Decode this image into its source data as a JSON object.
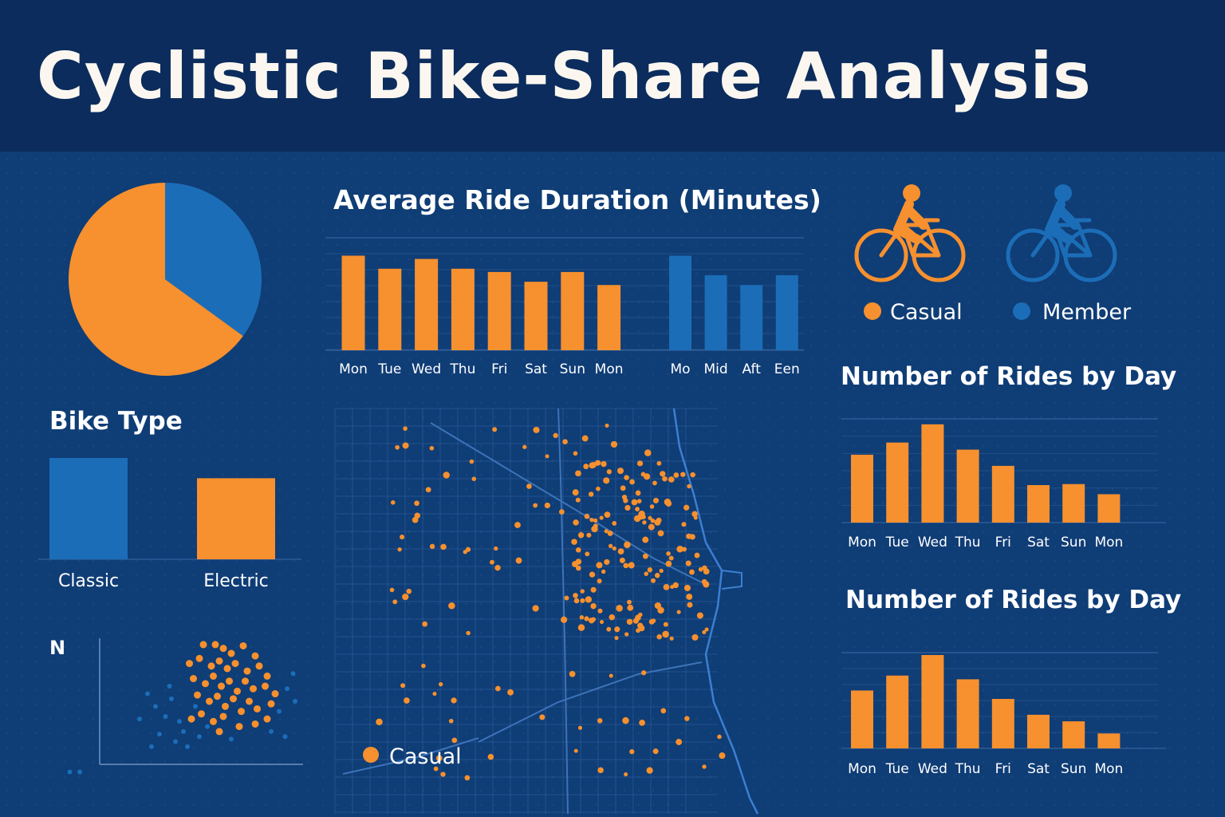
{
  "title": "Cyclistic Bike-Share Analysis",
  "colors": {
    "casual": "#f7902e",
    "member": "#1c6db7",
    "header_bg": "#0b2c5c",
    "panel_bg": "#0f3d76",
    "map_line": "#2a5fa0"
  },
  "legend": {
    "casual": "Casual",
    "member": "Member",
    "map_casual": "Casual"
  },
  "chart_data": [
    {
      "id": "pie",
      "type": "pie",
      "slices": [
        {
          "label": "Casual",
          "value": 65,
          "color": "#f7902e"
        },
        {
          "label": "Member",
          "value": 35,
          "color": "#1c6db7"
        }
      ]
    },
    {
      "id": "bike_type",
      "type": "bar",
      "title": "Bike Type",
      "categories": [
        "Classic",
        "Electric"
      ],
      "values": [
        100,
        80
      ],
      "colors": [
        "#1c6db7",
        "#f7902e"
      ],
      "ylim": [
        0,
        100
      ]
    },
    {
      "id": "scatter",
      "type": "scatter",
      "ylabel": "N",
      "series": [
        {
          "color": "#f7902e",
          "points": [
            [
              0.52,
              0.95
            ],
            [
              0.58,
              0.95
            ],
            [
              0.62,
              0.92
            ],
            [
              0.66,
              0.88
            ],
            [
              0.72,
              0.94
            ],
            [
              0.78,
              0.86
            ],
            [
              0.45,
              0.8
            ],
            [
              0.5,
              0.84
            ],
            [
              0.56,
              0.78
            ],
            [
              0.6,
              0.82
            ],
            [
              0.64,
              0.76
            ],
            [
              0.68,
              0.8
            ],
            [
              0.74,
              0.74
            ],
            [
              0.8,
              0.78
            ],
            [
              0.84,
              0.7
            ],
            [
              0.47,
              0.68
            ],
            [
              0.53,
              0.64
            ],
            [
              0.57,
              0.7
            ],
            [
              0.61,
              0.62
            ],
            [
              0.65,
              0.66
            ],
            [
              0.69,
              0.58
            ],
            [
              0.73,
              0.66
            ],
            [
              0.77,
              0.6
            ],
            [
              0.83,
              0.62
            ],
            [
              0.88,
              0.56
            ],
            [
              0.49,
              0.55
            ],
            [
              0.55,
              0.5
            ],
            [
              0.59,
              0.54
            ],
            [
              0.63,
              0.46
            ],
            [
              0.67,
              0.52
            ],
            [
              0.71,
              0.42
            ],
            [
              0.75,
              0.5
            ],
            [
              0.79,
              0.44
            ],
            [
              0.86,
              0.48
            ],
            [
              0.51,
              0.4
            ],
            [
              0.57,
              0.34
            ],
            [
              0.62,
              0.38
            ],
            [
              0.7,
              0.3
            ],
            [
              0.78,
              0.32
            ],
            [
              0.84,
              0.36
            ],
            [
              0.6,
              0.26
            ],
            [
              0.46,
              0.36
            ]
          ]
        },
        {
          "color": "#1c6db7",
          "points": [
            [
              0.28,
              0.46
            ],
            [
              0.33,
              0.38
            ],
            [
              0.36,
              0.52
            ],
            [
              0.4,
              0.34
            ],
            [
              0.42,
              0.26
            ],
            [
              0.38,
              0.18
            ],
            [
              0.44,
              0.14
            ],
            [
              0.5,
              0.22
            ],
            [
              0.48,
              0.46
            ],
            [
              0.86,
              0.26
            ],
            [
              0.9,
              0.42
            ],
            [
              0.94,
              0.6
            ],
            [
              0.98,
              0.5
            ],
            [
              0.93,
              0.22
            ],
            [
              0.97,
              0.72
            ],
            [
              0.3,
              0.24
            ],
            [
              0.35,
              0.62
            ],
            [
              0.24,
              0.56
            ],
            [
              0.2,
              0.36
            ],
            [
              0.26,
              0.14
            ],
            [
              -0.15,
              -0.06
            ],
            [
              -0.1,
              -0.06
            ],
            [
              0.54,
              0.3
            ],
            [
              0.66,
              0.2
            ]
          ]
        }
      ]
    },
    {
      "id": "avg_duration",
      "type": "bar",
      "title": "Average Ride Duration (Minutes)",
      "groups": [
        {
          "categories": [
            "Mon",
            "Tue",
            "Wed",
            "Thu",
            "Fri",
            "Sat",
            "Sun",
            "Mon"
          ],
          "values": [
            29,
            25,
            28,
            25,
            24,
            21,
            24,
            20
          ],
          "color": "#f7902e"
        },
        {
          "categories": [
            "Mo",
            "Mid",
            "Aft",
            "Een"
          ],
          "values": [
            29,
            23,
            20,
            23
          ],
          "color": "#1c6db7"
        }
      ],
      "ylim": [
        0,
        34
      ]
    },
    {
      "id": "rides_by_day_1",
      "type": "bar",
      "title": "Number of Rides by Day",
      "categories": [
        "Mon",
        "Tue",
        "Wed",
        "Thu",
        "Fri",
        "Sat",
        "Sun",
        "Mon"
      ],
      "values": [
        67,
        79,
        97,
        72,
        56,
        37,
        38,
        28
      ],
      "ylim": [
        0,
        100
      ]
    },
    {
      "id": "rides_by_day_2",
      "type": "bar",
      "title": "Number of Rides by Day",
      "categories": [
        "Mon",
        "Tue",
        "Wed",
        "Thu",
        "Fri",
        "Sat",
        "Sun",
        "Mon"
      ],
      "values": [
        62,
        78,
        100,
        74,
        53,
        36,
        29,
        16
      ],
      "ylim": [
        0,
        100
      ]
    }
  ]
}
